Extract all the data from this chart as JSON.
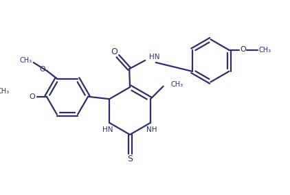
{
  "line_color": "#2d2d6b",
  "bg_color": "#ffffff",
  "line_width": 1.6,
  "figsize": [
    4.22,
    2.84
  ],
  "dpi": 100,
  "xlim": [
    0,
    8.44
  ],
  "ylim": [
    0,
    5.68
  ]
}
